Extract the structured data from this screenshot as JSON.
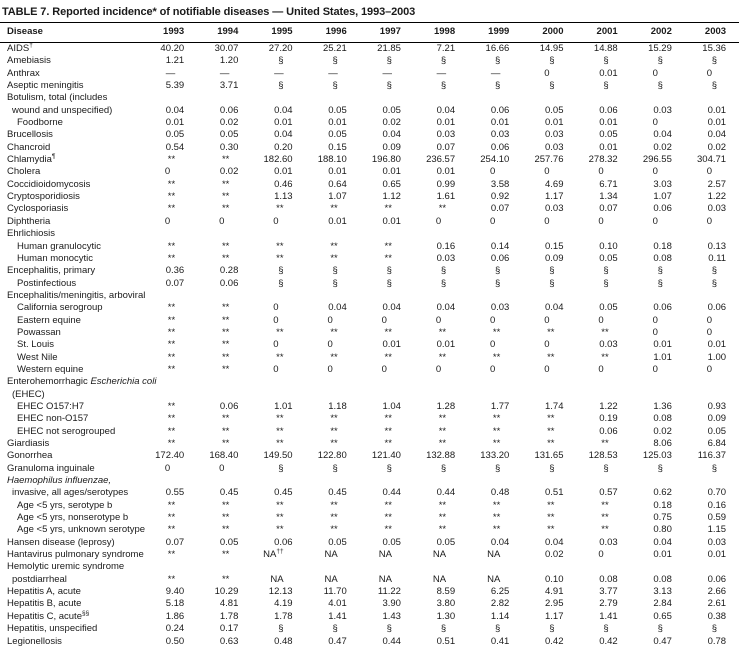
{
  "title": "TABLE 7. Reported incidence* of notifiable diseases — United States, 1993–2003",
  "table": {
    "disease_header": "Disease",
    "years": [
      "1993",
      "1994",
      "1995",
      "1996",
      "1997",
      "1998",
      "1999",
      "2000",
      "2001",
      "2002",
      "2003"
    ],
    "rows": [
      {
        "label": "AIDS",
        "sup": "†",
        "values": [
          "40.20",
          "30.07",
          "27.20",
          "25.21",
          "21.85",
          "7.21",
          "16.66",
          "14.95",
          "14.88",
          "15.29",
          "15.36"
        ]
      },
      {
        "label": "Amebiasis",
        "values": [
          "1.21",
          "1.20",
          "§",
          "§",
          "§",
          "§",
          "§",
          "§",
          "§",
          "§",
          "§"
        ]
      },
      {
        "label": "Anthrax",
        "values": [
          "—",
          "—",
          "—",
          "—",
          "—",
          "—",
          "—",
          "0",
          "0.01",
          "0",
          "0"
        ]
      },
      {
        "label": "Aseptic meningitis",
        "values": [
          "5.39",
          "3.71",
          "§",
          "§",
          "§",
          "§",
          "§",
          "§",
          "§",
          "§",
          "§"
        ]
      },
      {
        "label": "Botulism, total (includes",
        "label2": "wound and unspecified)",
        "values": [
          "0.04",
          "0.06",
          "0.04",
          "0.05",
          "0.05",
          "0.04",
          "0.06",
          "0.05",
          "0.06",
          "0.03",
          "0.01"
        ]
      },
      {
        "label": "Foodborne",
        "indent": 1,
        "values": [
          "0.01",
          "0.02",
          "0.01",
          "0.01",
          "0.02",
          "0.01",
          "0.01",
          "0.01",
          "0.01",
          "0",
          "0.01"
        ]
      },
      {
        "label": "Brucellosis",
        "values": [
          "0.05",
          "0.05",
          "0.04",
          "0.05",
          "0.04",
          "0.03",
          "0.03",
          "0.03",
          "0.05",
          "0.04",
          "0.04"
        ]
      },
      {
        "label": "Chancroid",
        "values": [
          "0.54",
          "0.30",
          "0.20",
          "0.15",
          "0.09",
          "0.07",
          "0.06",
          "0.03",
          "0.01",
          "0.02",
          "0.02"
        ]
      },
      {
        "label": "Chlamydia",
        "sup": "¶",
        "values": [
          "**",
          "**",
          "182.60",
          "188.10",
          "196.80",
          "236.57",
          "254.10",
          "257.76",
          "278.32",
          "296.55",
          "304.71"
        ]
      },
      {
        "label": "Cholera",
        "values": [
          "0",
          "0.02",
          "0.01",
          "0.01",
          "0.01",
          "0.01",
          "0",
          "0",
          "0",
          "0",
          "0"
        ]
      },
      {
        "label": "Coccidioidomycosis",
        "values": [
          "**",
          "**",
          "0.46",
          "0.64",
          "0.65",
          "0.99",
          "3.58",
          "4.69",
          "6.71",
          "3.03",
          "2.57"
        ]
      },
      {
        "label": "Cryptosporidiosis",
        "values": [
          "**",
          "**",
          "1.13",
          "1.07",
          "1.12",
          "1.61",
          "0.92",
          "1.17",
          "1.34",
          "1.07",
          "1.22"
        ]
      },
      {
        "label": "Cyclosporiasis",
        "values": [
          "**",
          "**",
          "**",
          "**",
          "**",
          "**",
          "0.07",
          "0.03",
          "0.07",
          "0.06",
          "0.03"
        ]
      },
      {
        "label": "Diphtheria",
        "values": [
          "0",
          "0",
          "0",
          "0.01",
          "0.01",
          "0",
          "0",
          "0",
          "0",
          "0",
          "0"
        ]
      },
      {
        "label": "Ehrlichiosis",
        "group": true
      },
      {
        "label": "Human granulocytic",
        "indent": 1,
        "values": [
          "**",
          "**",
          "**",
          "**",
          "**",
          "0.16",
          "0.14",
          "0.15",
          "0.10",
          "0.18",
          "0.13"
        ]
      },
      {
        "label": "Human monocytic",
        "indent": 1,
        "values": [
          "**",
          "**",
          "**",
          "**",
          "**",
          "0.03",
          "0.06",
          "0.09",
          "0.05",
          "0.08",
          "0.11"
        ]
      },
      {
        "label": "Encephalitis, primary",
        "values": [
          "0.36",
          "0.28",
          "§",
          "§",
          "§",
          "§",
          "§",
          "§",
          "§",
          "§",
          "§"
        ]
      },
      {
        "label": "Postinfectious",
        "indent": 1,
        "values": [
          "0.07",
          "0.06",
          "§",
          "§",
          "§",
          "§",
          "§",
          "§",
          "§",
          "§",
          "§"
        ]
      },
      {
        "label": "Encephalitis/meningitis, arboviral",
        "group": true
      },
      {
        "label": "California serogroup",
        "indent": 1,
        "values": [
          "**",
          "**",
          "0",
          "0.04",
          "0.04",
          "0.04",
          "0.03",
          "0.04",
          "0.05",
          "0.06",
          "0.06"
        ]
      },
      {
        "label": "Eastern equine",
        "indent": 1,
        "values": [
          "**",
          "**",
          "0",
          "0",
          "0",
          "0",
          "0",
          "0",
          "0",
          "0",
          "0"
        ]
      },
      {
        "label": "Powassan",
        "indent": 1,
        "values": [
          "**",
          "**",
          "**",
          "**",
          "**",
          "**",
          "**",
          "**",
          "**",
          "0",
          "0"
        ]
      },
      {
        "label": "St. Louis",
        "indent": 1,
        "values": [
          "**",
          "**",
          "0",
          "0",
          "0.01",
          "0.01",
          "0",
          "0",
          "0.03",
          "0.01",
          "0.01"
        ]
      },
      {
        "label": "West Nile",
        "indent": 1,
        "values": [
          "**",
          "**",
          "**",
          "**",
          "**",
          "**",
          "**",
          "**",
          "**",
          "1.01",
          "1.00"
        ]
      },
      {
        "label": "Western equine",
        "indent": 1,
        "values": [
          "**",
          "**",
          "0",
          "0",
          "0",
          "0",
          "0",
          "0",
          "0",
          "0",
          "0"
        ]
      },
      {
        "label": "Enterohemorrhagic _Escherichia coli_",
        "label2": "(EHEC)",
        "group": true
      },
      {
        "label": "EHEC O157:H7",
        "indent": 1,
        "values": [
          "**",
          "0.06",
          "1.01",
          "1.18",
          "1.04",
          "1.28",
          "1.77",
          "1.74",
          "1.22",
          "1.36",
          "0.93"
        ]
      },
      {
        "label": "EHEC non-O157",
        "indent": 1,
        "values": [
          "**",
          "**",
          "**",
          "**",
          "**",
          "**",
          "**",
          "**",
          "0.19",
          "0.08",
          "0.09"
        ]
      },
      {
        "label": "EHEC not serogrouped",
        "indent": 1,
        "values": [
          "**",
          "**",
          "**",
          "**",
          "**",
          "**",
          "**",
          "**",
          "0.06",
          "0.02",
          "0.05"
        ]
      },
      {
        "label": "Giardiasis",
        "values": [
          "**",
          "**",
          "**",
          "**",
          "**",
          "**",
          "**",
          "**",
          "**",
          "8.06",
          "6.84"
        ]
      },
      {
        "label": "Gonorrhea",
        "values": [
          "172.40",
          "168.40",
          "149.50",
          "122.80",
          "121.40",
          "132.88",
          "133.20",
          "131.65",
          "128.53",
          "125.03",
          "116.37"
        ]
      },
      {
        "label": "Granuloma inguinale",
        "values": [
          "0",
          "0",
          "§",
          "§",
          "§",
          "§",
          "§",
          "§",
          "§",
          "§",
          "§"
        ]
      },
      {
        "label": "_Haemophilus influenzae,_",
        "label2": "invasive, all ages/serotypes",
        "values": [
          "0.55",
          "0.45",
          "0.45",
          "0.45",
          "0.44",
          "0.44",
          "0.48",
          "0.51",
          "0.57",
          "0.62",
          "0.70"
        ]
      },
      {
        "label": "Age <5 yrs, serotype b",
        "indent": 1,
        "values": [
          "**",
          "**",
          "**",
          "**",
          "**",
          "**",
          "**",
          "**",
          "**",
          "0.18",
          "0.16"
        ]
      },
      {
        "label": "Age <5 yrs, nonserotype b",
        "indent": 1,
        "values": [
          "**",
          "**",
          "**",
          "**",
          "**",
          "**",
          "**",
          "**",
          "**",
          "0.75",
          "0.59"
        ]
      },
      {
        "label": "Age <5 yrs, unknown serotype",
        "indent": 1,
        "values": [
          "**",
          "**",
          "**",
          "**",
          "**",
          "**",
          "**",
          "**",
          "**",
          "0.80",
          "1.15"
        ]
      },
      {
        "label": "Hansen disease (leprosy)",
        "values": [
          "0.07",
          "0.05",
          "0.06",
          "0.05",
          "0.05",
          "0.05",
          "0.04",
          "0.04",
          "0.03",
          "0.04",
          "0.03"
        ]
      },
      {
        "label": "Hantavirus pulmonary syndrome",
        "values": [
          "**",
          "**",
          "NA††",
          "NA",
          "NA",
          "NA",
          "NA",
          "0.02",
          "0",
          "0.01",
          "0.01"
        ]
      },
      {
        "label": "Hemolytic uremic syndrome",
        "label2": "postdiarrheal",
        "values": [
          "**",
          "**",
          "NA",
          "NA",
          "NA",
          "NA",
          "NA",
          "0.10",
          "0.08",
          "0.08",
          "0.06"
        ]
      },
      {
        "label": "Hepatitis A, acute",
        "values": [
          "9.40",
          "10.29",
          "12.13",
          "11.70",
          "11.22",
          "8.59",
          "6.25",
          "4.91",
          "3.77",
          "3.13",
          "2.66"
        ]
      },
      {
        "label": "Hepatitis B, acute",
        "values": [
          "5.18",
          "4.81",
          "4.19",
          "4.01",
          "3.90",
          "3.80",
          "2.82",
          "2.95",
          "2.79",
          "2.84",
          "2.61"
        ]
      },
      {
        "label": "Hepatitis C, acute",
        "sup": "§§",
        "values": [
          "1.86",
          "1.78",
          "1.78",
          "1.41",
          "1.43",
          "1.30",
          "1.14",
          "1.17",
          "1.41",
          "0.65",
          "0.38"
        ]
      },
      {
        "label": "Hepatitis, unspecified",
        "values": [
          "0.24",
          "0.17",
          "§",
          "§",
          "§",
          "§",
          "§",
          "§",
          "§",
          "§",
          "§"
        ]
      },
      {
        "label": "Legionellosis",
        "values": [
          "0.50",
          "0.63",
          "0.48",
          "0.47",
          "0.44",
          "0.51",
          "0.41",
          "0.42",
          "0.42",
          "0.47",
          "0.78"
        ]
      }
    ]
  }
}
